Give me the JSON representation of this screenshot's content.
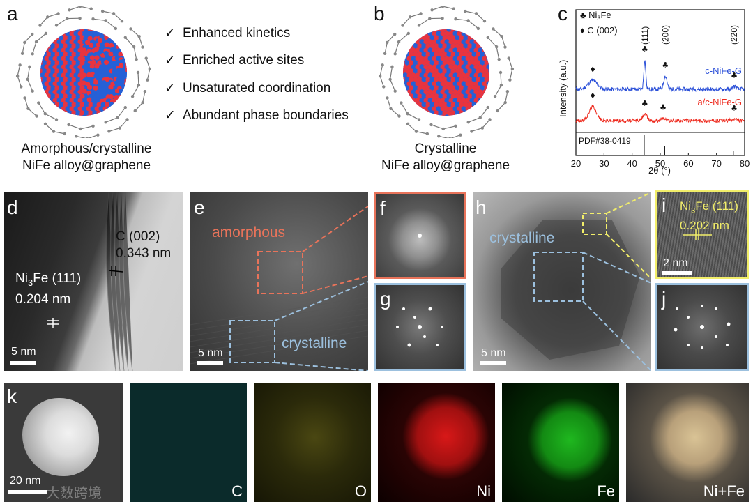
{
  "panels": {
    "a": {
      "label": "a",
      "caption_line1": "Amorphous/crystalline",
      "caption_line2": "NiFe alloy@graphene",
      "features": [
        "Enhanced kinetics",
        "Enriched active sites",
        "Unsaturated coordination",
        "Abundant phase boundaries"
      ]
    },
    "b": {
      "label": "b",
      "caption_line1": "Crystalline",
      "caption_line2": "NiFe alloy@graphene"
    },
    "c": {
      "label": "c"
    },
    "d": {
      "label": "d",
      "c002_label": "C (002)",
      "c002_spacing": "0.343 nm",
      "ni3fe_label_main": "Ni",
      "ni3fe_sub": "3",
      "ni3fe_label_rest": "Fe (111)",
      "ni3fe_spacing": "0.204 nm",
      "scale_bar": "5 nm"
    },
    "e": {
      "label": "e",
      "amorphous_label": "amorphous",
      "crystalline_label": "crystalline",
      "scale_bar": "5 nm"
    },
    "f": {
      "label": "f"
    },
    "g": {
      "label": "g"
    },
    "h": {
      "label": "h",
      "crystalline_label": "crystalline",
      "scale_bar": "5 nm"
    },
    "i": {
      "label": "i",
      "ni3fe_label_main": "Ni",
      "ni3fe_sub": "3",
      "ni3fe_label_rest": "Fe (111)",
      "spacing": "0.202 nm",
      "scale_bar": "2 nm"
    },
    "j": {
      "label": "j"
    },
    "k": {
      "label": "k",
      "scale_bar": "20 nm",
      "watermark": "大数跨境",
      "maps": [
        {
          "label": "C",
          "color": "#1fb3b3"
        },
        {
          "label": "O",
          "color": "#d6d018"
        },
        {
          "label": "Ni",
          "color": "#ff1a1a"
        },
        {
          "label": "Fe",
          "color": "#19d219"
        },
        {
          "label": "Ni+Fe",
          "color": "#e8cfa0"
        }
      ]
    }
  },
  "colors": {
    "ni": "#e8343f",
    "fe": "#2660d6",
    "amorphous_box": "#e8735a",
    "crystalline_box": "#9cc0de",
    "panel_i_box": "#f2ee6a",
    "xrd_c": "#2a4fd8",
    "xrd_ac": "#ee2a1e"
  },
  "chart_data": {
    "type": "line",
    "xlabel": "2θ (°)",
    "ylabel": "Intensity (a.u.)",
    "xlim": [
      20,
      80
    ],
    "xticks": [
      20,
      30,
      40,
      50,
      60,
      70,
      80
    ],
    "legend": [
      {
        "symbol": "♣",
        "label_main": "Ni",
        "label_sub": "3",
        "label_rest": "Fe"
      },
      {
        "symbol": "♦",
        "label_main": "C (002)",
        "label_sub": "",
        "label_rest": ""
      }
    ],
    "peak_labels": [
      {
        "text": "(111)",
        "x": 44.5
      },
      {
        "text": "(200)",
        "x": 51.8
      },
      {
        "text": "(220)",
        "x": 76.3
      }
    ],
    "series": [
      {
        "name": "c-NiFe-G",
        "peaks": [
          {
            "x": 26.0,
            "height": 0.3,
            "width": 1.6,
            "marker": "♦"
          },
          {
            "x": 44.5,
            "height": 1.0,
            "width": 0.35,
            "marker": "♣"
          },
          {
            "x": 51.8,
            "height": 0.45,
            "width": 0.6,
            "marker": "♣"
          },
          {
            "x": 76.3,
            "height": 0.1,
            "width": 0.6,
            "marker": "♣"
          }
        ]
      },
      {
        "name": "a/c-NiFe-G",
        "peaks": [
          {
            "x": 26.0,
            "height": 0.55,
            "width": 1.3,
            "marker": "♦"
          },
          {
            "x": 44.5,
            "height": 0.25,
            "width": 0.8,
            "marker": "♣"
          },
          {
            "x": 51.0,
            "height": 0.1,
            "width": 0.8,
            "marker": "♣"
          },
          {
            "x": 76.3,
            "height": 0.06,
            "width": 0.8,
            "marker": "♣"
          }
        ]
      }
    ],
    "reference": {
      "label": "PDF#38-0419",
      "lines": [
        {
          "x": 44.3,
          "intensity": 1.0
        },
        {
          "x": 51.6,
          "intensity": 0.45
        },
        {
          "x": 76.0,
          "intensity": 0.2
        }
      ]
    }
  }
}
